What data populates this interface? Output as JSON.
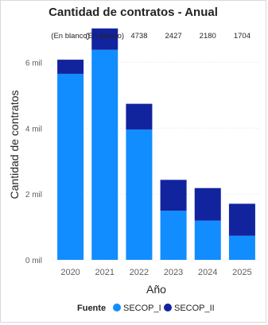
{
  "chart_data": {
    "type": "bar",
    "stacked": true,
    "title": "Cantidad de contratos - Anual",
    "xlabel": "Año",
    "ylabel": "Cantidad de contratos",
    "categories": [
      "2020",
      "2021",
      "2022",
      "2023",
      "2024",
      "2025"
    ],
    "series": [
      {
        "name": "SECOP_I",
        "color": "#118dff",
        "values": [
          5650,
          6380,
          3960,
          1490,
          1190,
          730
        ]
      },
      {
        "name": "SECOP_II",
        "color": "#12239e",
        "values": [
          430,
          650,
          780,
          940,
          990,
          974
        ]
      }
    ],
    "totals_labels": [
      "(En blanco)",
      "(En blanco)",
      "4738",
      "2427",
      "2180",
      "1704"
    ],
    "yticks": [
      {
        "value": 0,
        "label": "0 mil"
      },
      {
        "value": 2000,
        "label": "2 mil"
      },
      {
        "value": 4000,
        "label": "4 mil"
      },
      {
        "value": 6000,
        "label": "6 mil"
      }
    ],
    "ylim": [
      0,
      7000
    ],
    "grid": true,
    "legend": {
      "title": "Fuente",
      "position": "bottom"
    }
  }
}
